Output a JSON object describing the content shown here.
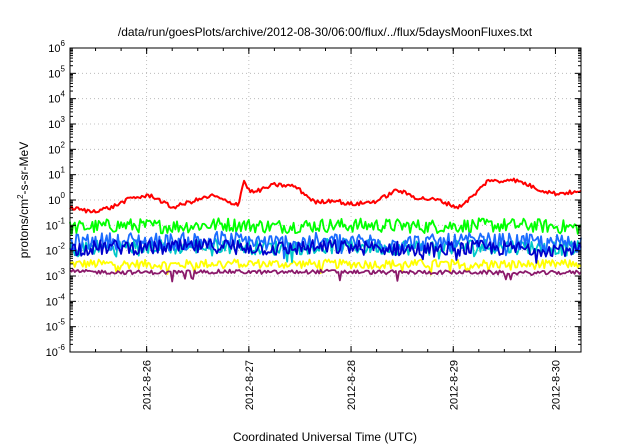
{
  "chart_data": {
    "type": "line",
    "title": "/data/run/goesPlots/archive/2012-08-30/06:00/flux/../flux/5daysMoonFluxes.txt",
    "xlabel": "Coordinated Universal Time (UTC)",
    "ylabel": {
      "pre": "protons/cm",
      "sup": "2",
      "post": "-s-sr-MeV"
    },
    "y_scale": "log",
    "ylim": [
      1e-06,
      1000000.0
    ],
    "y_ticks": [
      {
        "base": "10",
        "exp": "-6"
      },
      {
        "base": "10",
        "exp": "-5"
      },
      {
        "base": "10",
        "exp": "-4"
      },
      {
        "base": "10",
        "exp": "-3"
      },
      {
        "base": "10",
        "exp": "-2"
      },
      {
        "base": "10",
        "exp": "-1"
      },
      {
        "base": "10",
        "exp": "0"
      },
      {
        "base": "10",
        "exp": "1"
      },
      {
        "base": "10",
        "exp": "2"
      },
      {
        "base": "10",
        "exp": "3"
      },
      {
        "base": "10",
        "exp": "4"
      },
      {
        "base": "10",
        "exp": "5"
      },
      {
        "base": "10",
        "exp": "6"
      }
    ],
    "xlim": [
      "2012-08-25 06:00",
      "2012-08-30 06:00"
    ],
    "x_ticks": [
      "2012-8-26",
      "2012-8-27",
      "2012-8-28",
      "2012-8-29",
      "2012-8-30"
    ],
    "grid": true,
    "series": [
      {
        "color": "#ff0000",
        "x": [
          0,
          0.2,
          0.4,
          0.6,
          0.8,
          1.0,
          1.2,
          1.4,
          1.55,
          1.65,
          1.7,
          1.75,
          1.8,
          2.0,
          2.2,
          2.4,
          2.6,
          2.7,
          2.8,
          3.0,
          3.2,
          3.4,
          3.6,
          3.8,
          3.95,
          4.1,
          4.2,
          4.3,
          4.45,
          4.6,
          4.75,
          4.9,
          5.0
        ],
        "values": [
          0.5,
          0.35,
          0.5,
          1.2,
          1.5,
          0.5,
          0.9,
          1.5,
          0.8,
          0.7,
          6.0,
          2.5,
          2.0,
          4.0,
          3.5,
          0.8,
          1.0,
          0.7,
          0.7,
          0.9,
          2.5,
          1.2,
          1.0,
          0.5,
          1.5,
          6.5,
          5.0,
          7.0,
          4.5,
          2.5,
          1.8,
          2.0,
          2.0
        ]
      },
      {
        "color": "#00ff00",
        "x": [
          0,
          0.5,
          1.0,
          1.5,
          2.0,
          2.5,
          3.0,
          3.5,
          4.0,
          4.5,
          5.0
        ],
        "values": [
          0.08,
          0.1,
          0.09,
          0.11,
          0.09,
          0.1,
          0.1,
          0.09,
          0.1,
          0.1,
          0.08
        ]
      },
      {
        "color": "#00c8c8",
        "x": [
          0,
          0.5,
          1.0,
          1.5,
          2.0,
          2.5,
          3.0,
          3.5,
          4.0,
          4.5,
          5.0
        ],
        "values": [
          0.012,
          0.015,
          0.014,
          0.016,
          0.013,
          0.015,
          0.014,
          0.013,
          0.015,
          0.014,
          0.012
        ]
      },
      {
        "color": "#1a6cff",
        "x": [
          0,
          0.5,
          1.0,
          1.5,
          2.0,
          2.5,
          3.0,
          3.5,
          4.0,
          4.5,
          5.0
        ],
        "values": [
          0.02,
          0.025,
          0.022,
          0.028,
          0.02,
          0.024,
          0.022,
          0.02,
          0.023,
          0.021,
          0.019
        ]
      },
      {
        "color": "#0000cc",
        "x": [
          0,
          0.5,
          1.0,
          1.5,
          2.0,
          2.5,
          3.0,
          3.5,
          4.0,
          4.5,
          5.0
        ],
        "values": [
          0.012,
          0.014,
          0.013,
          0.016,
          0.012,
          0.014,
          0.013,
          0.011,
          0.013,
          0.012,
          0.012
        ]
      },
      {
        "color": "#ffff00",
        "x": [
          0,
          0.5,
          1.0,
          1.5,
          2.0,
          2.5,
          3.0,
          3.5,
          4.0,
          4.5,
          5.0
        ],
        "values": [
          0.003,
          0.003,
          0.0028,
          0.0032,
          0.003,
          0.003,
          0.0029,
          0.003,
          0.003,
          0.0028,
          0.003
        ]
      },
      {
        "color": "#8b1a6b",
        "x": [
          0,
          0.5,
          1.0,
          1.5,
          2.0,
          2.5,
          3.0,
          3.5,
          4.0,
          4.5,
          5.0
        ],
        "values": [
          0.0015,
          0.0014,
          0.0014,
          0.0015,
          0.0014,
          0.0015,
          0.0014,
          0.0014,
          0.0014,
          0.0013,
          0.0014
        ]
      }
    ]
  }
}
